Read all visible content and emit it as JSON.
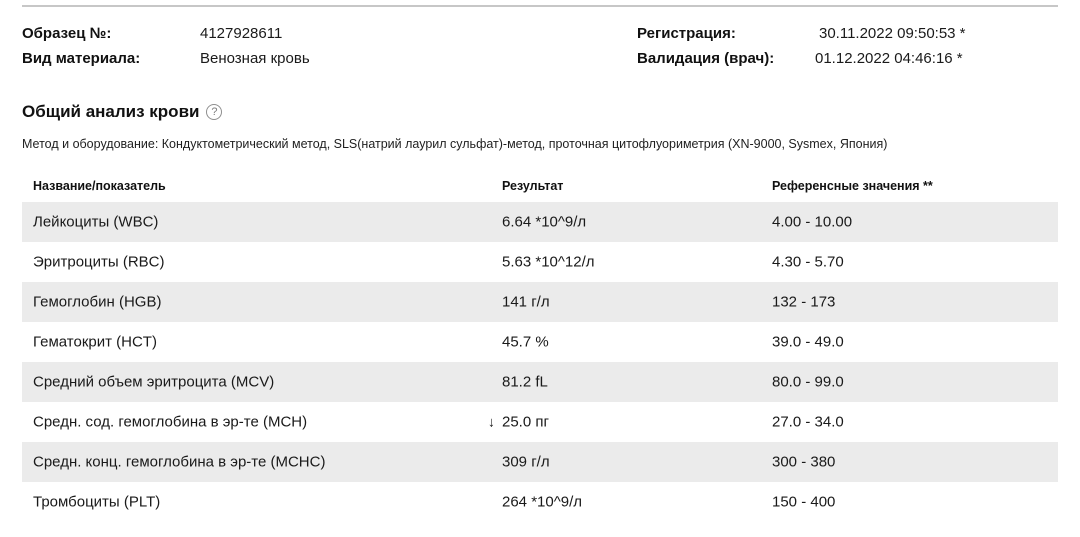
{
  "meta": {
    "sample_label": "Образец №:",
    "sample_value": "4127928611",
    "material_label": "Вид материала:",
    "material_value": "Венозная кровь",
    "registration_label": "Регистрация:",
    "registration_value": "30.11.2022 09:50:53 *",
    "validation_label": "Валидация (врач):",
    "validation_value": "01.12.2022 04:46:16 *"
  },
  "section": {
    "title": "Общий анализ крови",
    "help_glyph": "?",
    "method_line": "Метод и оборудование: Кондуктометрический метод, SLS(натрий лаурил сульфат)-метод, проточная цитофлуориметрия (XN-9000, Sysmex, Япония)"
  },
  "table": {
    "columns": [
      "Название/показатель",
      "Результат",
      "Референсные значения **"
    ],
    "rows": [
      {
        "name": "Лейкоциты (WBC)",
        "flag": "",
        "result": "6.64 *10^9/л",
        "reference": "4.00 - 10.00"
      },
      {
        "name": "Эритроциты (RBC)",
        "flag": "",
        "result": "5.63 *10^12/л",
        "reference": "4.30 - 5.70"
      },
      {
        "name": "Гемоглобин (HGB)",
        "flag": "",
        "result": "141 г/л",
        "reference": "132 - 173"
      },
      {
        "name": "Гематокрит (HCT)",
        "flag": "",
        "result": "45.7 %",
        "reference": "39.0 - 49.0"
      },
      {
        "name": "Средний объем эритроцита (MCV)",
        "flag": "",
        "result": "81.2 fL",
        "reference": "80.0 - 99.0"
      },
      {
        "name": "Средн. сод. гемоглобина в эр-те (MCH)",
        "flag": "↓",
        "result": "25.0 пг",
        "reference": "27.0 - 34.0"
      },
      {
        "name": "Средн. конц. гемоглобина в эр-те (MCHC)",
        "flag": "",
        "result": "309 г/л",
        "reference": "300 - 380"
      },
      {
        "name": "Тромбоциты (PLT)",
        "flag": "",
        "result": "264 *10^9/л",
        "reference": "150 - 400"
      }
    ]
  },
  "colors": {
    "row_alt": "#ebebeb",
    "divider": "#c7c7c7",
    "text": "#1a1a1a"
  }
}
